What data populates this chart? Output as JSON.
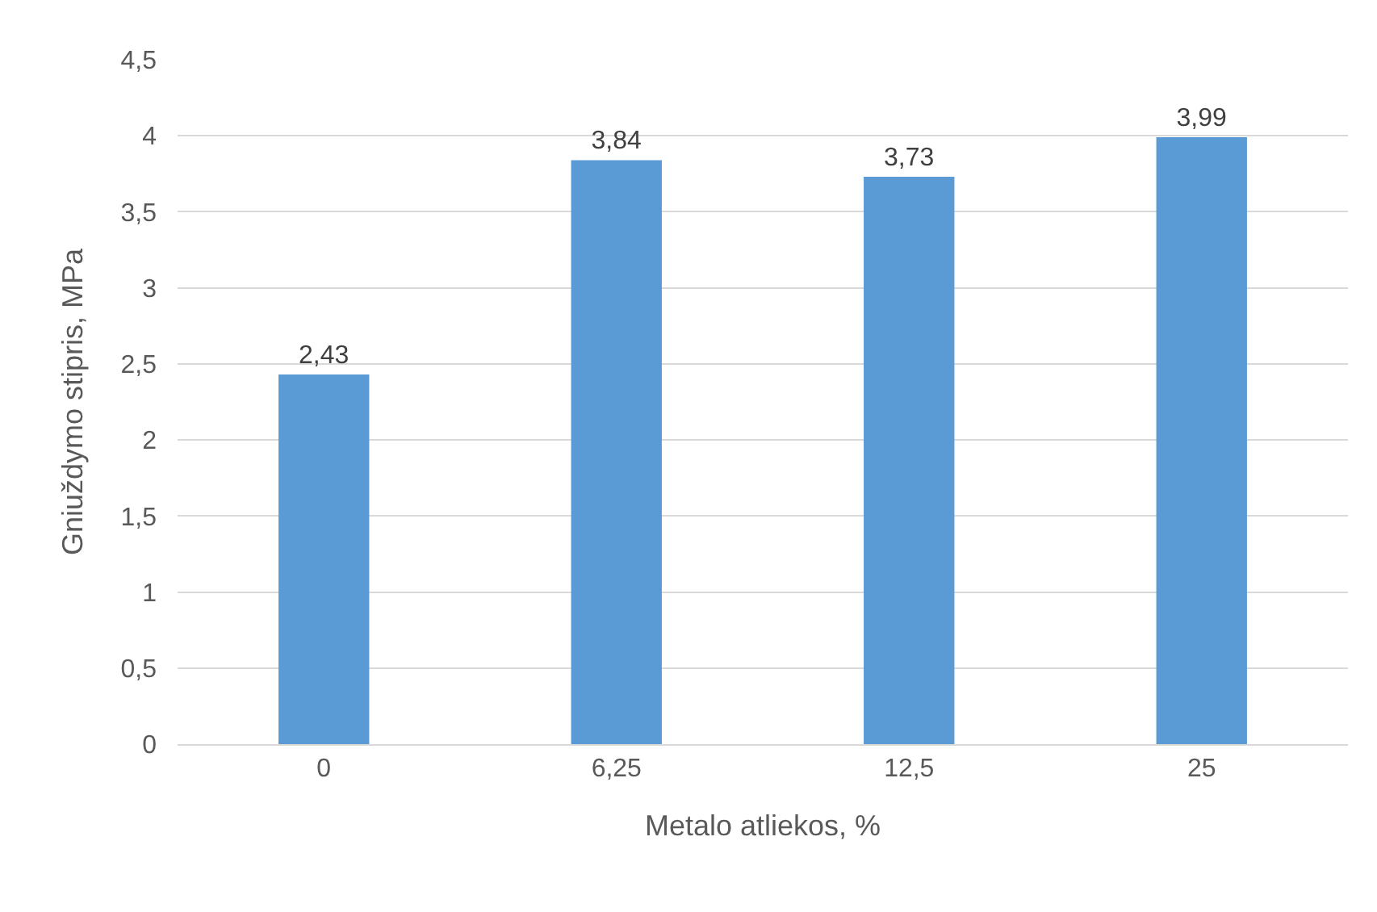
{
  "chart_data": {
    "type": "bar",
    "xlabel": "Metalo atliekos, %",
    "ylabel": "Gniuždymo stipris, MPa",
    "categories": [
      "0",
      "6,25",
      "12,5",
      "25"
    ],
    "values": [
      2.43,
      3.84,
      3.73,
      3.99
    ],
    "value_labels": [
      "2,43",
      "3,84",
      "3,73",
      "3,99"
    ],
    "color": "#5b9bd5",
    "ylim": [
      0,
      4.5
    ],
    "yticks": [
      0,
      {
        "value": 0.5,
        "label": "0,5"
      },
      1,
      {
        "value": 1.5,
        "label": "1,5"
      },
      2,
      {
        "value": 2.5,
        "label": "2,5"
      },
      3,
      {
        "value": 3.5,
        "label": "3,5"
      },
      4,
      {
        "value": 4.5,
        "label": "4,5"
      }
    ],
    "grid": "y",
    "legend": false
  }
}
